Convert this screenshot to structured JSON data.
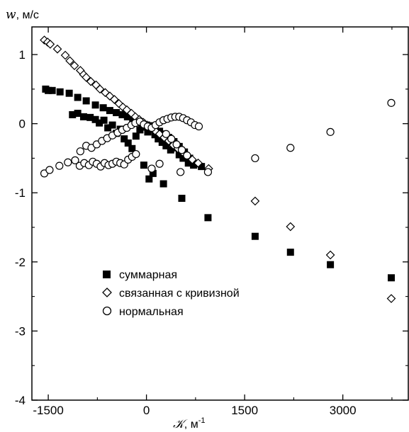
{
  "chart_data": {
    "type": "scatter",
    "ylabel_symbol": "w",
    "ylabel_unit": ", м/с",
    "xlabel_symbol": "𝒦",
    "xlabel_unit": ", м",
    "xlabel_unit_exp": "-1",
    "xlim": [
      -1750,
      4000
    ],
    "ylim": [
      -4,
      1.4
    ],
    "x_ticks": [
      {
        "value": -1500,
        "label": "-1500"
      },
      {
        "value": 0,
        "label": "0"
      },
      {
        "value": 1500,
        "label": "1500"
      },
      {
        "value": 3000,
        "label": "3000"
      }
    ],
    "y_ticks": [
      {
        "value": 1,
        "label": "1"
      },
      {
        "value": 0,
        "label": "0"
      },
      {
        "value": -1,
        "label": "-1"
      },
      {
        "value": -2,
        "label": "-2"
      },
      {
        "value": -3,
        "label": "-3"
      },
      {
        "value": -4,
        "label": "-4"
      }
    ],
    "legend_position": "lower-left",
    "series": [
      {
        "name": "суммарная",
        "marker": "filled-square",
        "color": "#000000",
        "points": [
          [
            -1540,
            0.5
          ],
          [
            -1500,
            0.48
          ],
          [
            -1440,
            0.48
          ],
          [
            -1320,
            0.46
          ],
          [
            -1180,
            0.44
          ],
          [
            -1050,
            0.38
          ],
          [
            -920,
            0.33
          ],
          [
            -780,
            0.27
          ],
          [
            -660,
            0.23
          ],
          [
            -560,
            0.19
          ],
          [
            -460,
            0.16
          ],
          [
            -370,
            0.13
          ],
          [
            -290,
            0.1
          ],
          [
            -210,
            0.07
          ],
          [
            -140,
            0.04
          ],
          [
            -70,
            0.01
          ],
          [
            0,
            -0.02
          ],
          [
            60,
            -0.05
          ],
          [
            130,
            -0.08
          ],
          [
            200,
            -0.11
          ],
          [
            270,
            -0.15
          ],
          [
            340,
            -0.2
          ],
          [
            420,
            -0.26
          ],
          [
            500,
            -0.33
          ],
          [
            580,
            -0.41
          ],
          [
            660,
            -0.5
          ],
          [
            760,
            -0.58
          ],
          [
            840,
            -0.62
          ],
          [
            -1130,
            0.13
          ],
          [
            -1050,
            0.15
          ],
          [
            -960,
            0.1
          ],
          [
            -860,
            0.09
          ],
          [
            -780,
            0.06
          ],
          [
            -720,
            0.01
          ],
          [
            -650,
            0.05
          ],
          [
            -590,
            -0.06
          ],
          [
            -520,
            -0.02
          ],
          [
            -460,
            -0.14
          ],
          [
            -400,
            -0.08
          ],
          [
            -340,
            -0.22
          ],
          [
            -280,
            -0.28
          ],
          [
            -220,
            -0.36
          ],
          [
            -160,
            -0.18
          ],
          [
            -100,
            -0.09
          ],
          [
            -40,
            -0.05
          ],
          [
            20,
            -0.12
          ],
          [
            70,
            -0.03
          ],
          [
            130,
            -0.16
          ],
          [
            180,
            -0.22
          ],
          [
            240,
            -0.27
          ],
          [
            300,
            -0.32
          ],
          [
            370,
            -0.38
          ],
          [
            440,
            -0.35
          ],
          [
            500,
            -0.45
          ],
          [
            560,
            -0.5
          ],
          [
            640,
            -0.57
          ],
          [
            720,
            -0.6
          ],
          [
            -40,
            -0.6
          ],
          [
            40,
            -0.8
          ],
          [
            100,
            -0.72
          ],
          [
            260,
            -0.87
          ],
          [
            540,
            -1.08
          ],
          [
            940,
            -1.36
          ],
          [
            1660,
            -1.63
          ],
          [
            2200,
            -1.86
          ],
          [
            2810,
            -2.04
          ],
          [
            3740,
            -2.23
          ]
        ]
      },
      {
        "name": "связанная с кривизной",
        "marker": "open-diamond",
        "color": "#000000",
        "points": [
          [
            -1560,
            1.21
          ],
          [
            -1510,
            1.18
          ],
          [
            -1470,
            1.15
          ],
          [
            -1360,
            1.08
          ],
          [
            -1240,
            0.99
          ],
          [
            -1170,
            0.91
          ],
          [
            -1100,
            0.84
          ],
          [
            -1010,
            0.77
          ],
          [
            -960,
            0.71
          ],
          [
            -920,
            0.67
          ],
          [
            -850,
            0.61
          ],
          [
            -770,
            0.56
          ],
          [
            -710,
            0.5
          ],
          [
            -630,
            0.45
          ],
          [
            -560,
            0.4
          ],
          [
            -490,
            0.35
          ],
          [
            -420,
            0.29
          ],
          [
            -360,
            0.24
          ],
          [
            -300,
            0.2
          ],
          [
            -230,
            0.15
          ],
          [
            -170,
            0.1
          ],
          [
            -110,
            0.06
          ],
          [
            -50,
            0.02
          ],
          [
            10,
            -0.02
          ],
          [
            70,
            -0.06
          ],
          [
            140,
            -0.11
          ],
          [
            200,
            -0.15
          ],
          [
            270,
            -0.2
          ],
          [
            340,
            -0.25
          ],
          [
            410,
            -0.31
          ],
          [
            480,
            -0.36
          ],
          [
            550,
            -0.41
          ],
          [
            620,
            -0.47
          ],
          [
            700,
            -0.52
          ],
          [
            790,
            -0.57
          ],
          [
            950,
            -0.65
          ],
          [
            1660,
            -1.12
          ],
          [
            2200,
            -1.49
          ],
          [
            2810,
            -1.9
          ],
          [
            3740,
            -2.53
          ]
        ]
      },
      {
        "name": "нормальная",
        "marker": "open-circle",
        "color": "#000000",
        "points": [
          [
            -1560,
            -0.72
          ],
          [
            -1480,
            -0.67
          ],
          [
            -1330,
            -0.61
          ],
          [
            -1200,
            -0.56
          ],
          [
            -1090,
            -0.53
          ],
          [
            -1020,
            -0.61
          ],
          [
            -950,
            -0.57
          ],
          [
            -880,
            -0.6
          ],
          [
            -820,
            -0.55
          ],
          [
            -760,
            -0.58
          ],
          [
            -700,
            -0.62
          ],
          [
            -640,
            -0.57
          ],
          [
            -580,
            -0.6
          ],
          [
            -520,
            -0.58
          ],
          [
            -460,
            -0.55
          ],
          [
            -400,
            -0.57
          ],
          [
            -340,
            -0.59
          ],
          [
            -280,
            -0.52
          ],
          [
            -220,
            -0.48
          ],
          [
            -160,
            -0.44
          ],
          [
            -1010,
            -0.4
          ],
          [
            -920,
            -0.32
          ],
          [
            -840,
            -0.35
          ],
          [
            -760,
            -0.3
          ],
          [
            -680,
            -0.25
          ],
          [
            -600,
            -0.21
          ],
          [
            -520,
            -0.17
          ],
          [
            -440,
            -0.13
          ],
          [
            -370,
            -0.09
          ],
          [
            -300,
            -0.06
          ],
          [
            -230,
            -0.02
          ],
          [
            -170,
            0.01
          ],
          [
            -100,
            0.03
          ],
          [
            -40,
            -0.01
          ],
          [
            20,
            -0.04
          ],
          [
            80,
            -0.06
          ],
          [
            140,
            -0.02
          ],
          [
            200,
            0.02
          ],
          [
            260,
            0.05
          ],
          [
            320,
            0.07
          ],
          [
            380,
            0.09
          ],
          [
            440,
            0.1
          ],
          [
            500,
            0.1
          ],
          [
            560,
            0.08
          ],
          [
            620,
            0.05
          ],
          [
            680,
            0.02
          ],
          [
            740,
            -0.02
          ],
          [
            800,
            -0.04
          ],
          [
            300,
            -0.15
          ],
          [
            380,
            -0.22
          ],
          [
            460,
            -0.3
          ],
          [
            540,
            -0.38
          ],
          [
            620,
            -0.46
          ],
          [
            520,
            -0.7
          ],
          [
            940,
            -0.7
          ],
          [
            80,
            -0.65
          ],
          [
            200,
            -0.58
          ],
          [
            1660,
            -0.5
          ],
          [
            2200,
            -0.35
          ],
          [
            2810,
            -0.12
          ],
          [
            3740,
            0.3
          ]
        ]
      }
    ]
  }
}
